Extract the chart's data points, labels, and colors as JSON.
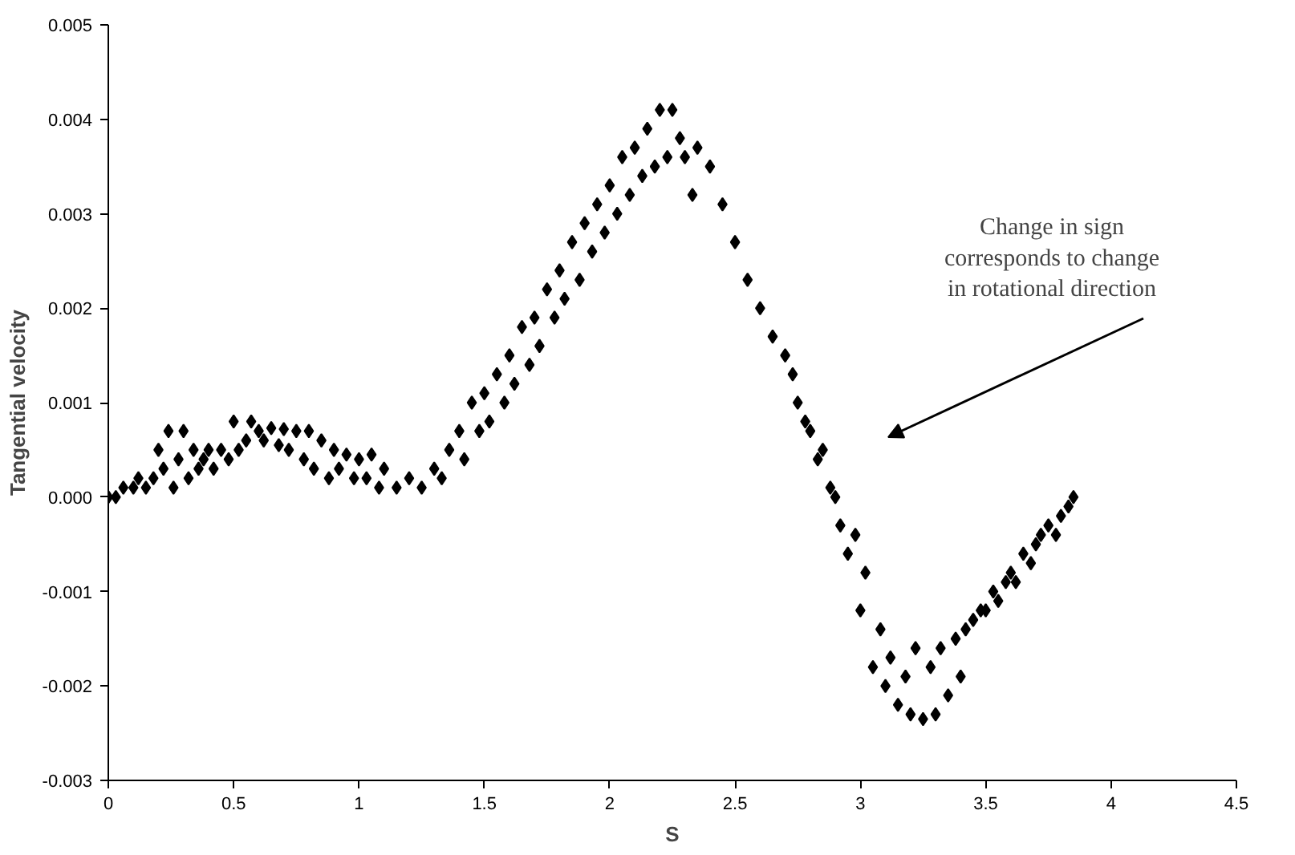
{
  "chart_data": {
    "type": "scatter",
    "xlabel": "S",
    "ylabel": "Tangential velocity",
    "marker": "diamond",
    "grid": false,
    "xlim": [
      0,
      4.5
    ],
    "xticks": [
      0,
      0.5,
      1,
      1.5,
      2,
      2.5,
      3,
      3.5,
      4,
      4.5
    ],
    "ylim": [
      -0.003,
      0.005
    ],
    "yticks": [
      {
        "value": -0.003,
        "label": "-0.003"
      },
      {
        "value": -0.002,
        "label": "-0.002"
      },
      {
        "value": -0.001,
        "label": "-0.001"
      },
      {
        "value": 0,
        "label": "0.000"
      },
      {
        "value": 0.001,
        "label": "0.001"
      },
      {
        "value": 0.002,
        "label": "0.002"
      },
      {
        "value": 0.003,
        "label": "0.003"
      },
      {
        "value": 0.004,
        "label": "0.004"
      },
      {
        "value": 0.005,
        "label": "0.005"
      }
    ],
    "annotations": [
      "Change in sign\ncorresponds to change\nin rotational direction"
    ],
    "series": [
      {
        "color": "#000000",
        "x": [
          0,
          0.03,
          0.06,
          0.1,
          0.12,
          0.15,
          0.18,
          0.2,
          0.22,
          0.24,
          0.26,
          0.28,
          0.3,
          0.32,
          0.34,
          0.36,
          0.38,
          0.4,
          0.42,
          0.45,
          0.48,
          0.5,
          0.52,
          0.55,
          0.57,
          0.6,
          0.62,
          0.65,
          0.68,
          0.7,
          0.72,
          0.75,
          0.78,
          0.8,
          0.82,
          0.85,
          0.88,
          0.9,
          0.92,
          0.95,
          0.98,
          1.0,
          1.03,
          1.05,
          1.08,
          1.1,
          1.15,
          1.2,
          1.25,
          1.3,
          1.33,
          1.36,
          1.4,
          1.42,
          1.45,
          1.48,
          1.5,
          1.52,
          1.55,
          1.58,
          1.6,
          1.62,
          1.65,
          1.68,
          1.7,
          1.72,
          1.75,
          1.78,
          1.8,
          1.82,
          1.85,
          1.88,
          1.9,
          1.93,
          1.95,
          1.98,
          2.0,
          2.03,
          2.05,
          2.08,
          2.1,
          2.13,
          2.15,
          2.18,
          2.2,
          2.23,
          2.25,
          2.28,
          2.3,
          2.33,
          2.35,
          2.4,
          2.45,
          2.5,
          2.55,
          2.6,
          2.65,
          2.7,
          2.73,
          2.75,
          2.78,
          2.8,
          2.83,
          2.85,
          2.88,
          2.9,
          2.92,
          2.95,
          2.98,
          3.0,
          3.02,
          3.05,
          3.08,
          3.1,
          3.12,
          3.15,
          3.18,
          3.2,
          3.22,
          3.25,
          3.28,
          3.3,
          3.32,
          3.35,
          3.38,
          3.4,
          3.42,
          3.45,
          3.48,
          3.5,
          3.53,
          3.55,
          3.58,
          3.6,
          3.62,
          3.65,
          3.68,
          3.7,
          3.72,
          3.75,
          3.78,
          3.8,
          3.83,
          3.85
        ],
        "values": [
          0,
          0,
          0.0001,
          0.0001,
          0.0002,
          0.0001,
          0.0002,
          0.0005,
          0.0003,
          0.0007,
          0.0001,
          0.0004,
          0.0007,
          0.0002,
          0.0005,
          0.0003,
          0.0004,
          0.0005,
          0.0003,
          0.0005,
          0.0004,
          0.0008,
          0.0005,
          0.0006,
          0.0008,
          0.0007,
          0.0006,
          0.00073,
          0.00055,
          0.00072,
          0.0005,
          0.0007,
          0.0004,
          0.0007,
          0.0003,
          0.0006,
          0.0002,
          0.0005,
          0.0003,
          0.00045,
          0.0002,
          0.0004,
          0.0002,
          0.00045,
          0.0001,
          0.0003,
          0.0001,
          0.0002,
          0.0001,
          0.0003,
          0.0002,
          0.0005,
          0.0007,
          0.0004,
          0.001,
          0.0007,
          0.0011,
          0.0008,
          0.0013,
          0.001,
          0.0015,
          0.0012,
          0.0018,
          0.0014,
          0.0019,
          0.0016,
          0.0022,
          0.0019,
          0.0024,
          0.0021,
          0.0027,
          0.0023,
          0.0029,
          0.0026,
          0.0031,
          0.0028,
          0.0033,
          0.003,
          0.0036,
          0.0032,
          0.0037,
          0.0034,
          0.0039,
          0.0035,
          0.0041,
          0.0036,
          0.0041,
          0.0038,
          0.0036,
          0.0032,
          0.0037,
          0.0035,
          0.0031,
          0.0027,
          0.0023,
          0.002,
          0.0017,
          0.0015,
          0.0013,
          0.001,
          0.0008,
          0.0007,
          0.0004,
          0.0005,
          0.0001,
          0,
          -0.0003,
          -0.0006,
          -0.0004,
          -0.0012,
          -0.0008,
          -0.0018,
          -0.0014,
          -0.002,
          -0.0017,
          -0.0022,
          -0.0019,
          -0.0023,
          -0.0016,
          -0.00235,
          -0.0018,
          -0.0023,
          -0.0016,
          -0.0021,
          -0.0015,
          -0.0019,
          -0.0014,
          -0.0013,
          -0.0012,
          -0.0012,
          -0.001,
          -0.0011,
          -0.0009,
          -0.0008,
          -0.0009,
          -0.0006,
          -0.0007,
          -0.0005,
          -0.0004,
          -0.0003,
          -0.0004,
          -0.0002,
          -0.0001,
          0
        ]
      }
    ]
  }
}
